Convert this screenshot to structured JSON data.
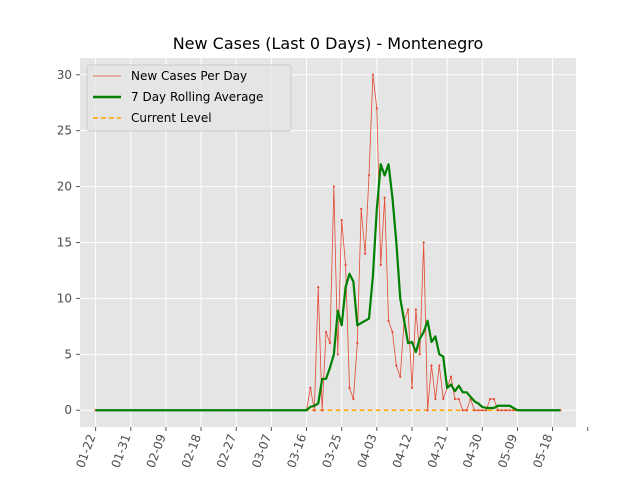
{
  "chart_data": {
    "type": "line",
    "title": "New Cases (Last 0 Days) - Montenegro",
    "xlabel": "",
    "ylabel": "",
    "x_start": "2020-01-22",
    "x_end": "2020-05-20",
    "xlim": [
      "2020-01-18",
      "2020-05-24"
    ],
    "ylim": [
      -1.5,
      31.5
    ],
    "x_tick_dates": [
      "2020-01-22",
      "2020-01-31",
      "2020-02-09",
      "2020-02-18",
      "2020-02-27",
      "2020-03-07",
      "2020-03-16",
      "2020-03-25",
      "2020-04-03",
      "2020-04-12",
      "2020-04-21",
      "2020-04-30",
      "2020-05-09",
      "2020-05-18",
      "2020-05-27"
    ],
    "x_tick_labels": [
      "01-22",
      "01-31",
      "02-09",
      "02-18",
      "02-27",
      "03-07",
      "03-16",
      "03-25",
      "04-03",
      "04-12",
      "04-21",
      "04-30",
      "05-09",
      "05-18",
      ""
    ],
    "y_ticks": [
      0,
      5,
      10,
      15,
      20,
      25,
      30
    ],
    "y_tick_labels": [
      "0",
      "5",
      "10",
      "15",
      "20",
      "25",
      "30"
    ],
    "grid": true,
    "legend_position": "top-left",
    "current_level": 0,
    "series": [
      {
        "name": "New Cases Per Day",
        "color": "#e24a33",
        "values": [
          0,
          0,
          0,
          0,
          0,
          0,
          0,
          0,
          0,
          0,
          0,
          0,
          0,
          0,
          0,
          0,
          0,
          0,
          0,
          0,
          0,
          0,
          0,
          0,
          0,
          0,
          0,
          0,
          0,
          0,
          0,
          0,
          0,
          0,
          0,
          0,
          0,
          0,
          0,
          0,
          0,
          0,
          0,
          0,
          0,
          0,
          0,
          0,
          0,
          0,
          0,
          0,
          0,
          0,
          0,
          2,
          0,
          11,
          0,
          7,
          6,
          20,
          5,
          17,
          13,
          2,
          1,
          6,
          18,
          14,
          21,
          30,
          27,
          13,
          19,
          8,
          7,
          4,
          3,
          8,
          9,
          2,
          9,
          5,
          15,
          0,
          4,
          1,
          4,
          1,
          2,
          3,
          1,
          1,
          0,
          0,
          1,
          0,
          0,
          0,
          0,
          1,
          1,
          0,
          0,
          0,
          0,
          0,
          0,
          0,
          0,
          0,
          0,
          0,
          0,
          0,
          0,
          0,
          0,
          0
        ]
      },
      {
        "name": "7 Day Rolling Average",
        "color": "#008000",
        "values": [
          0,
          0,
          0,
          0,
          0,
          0,
          0,
          0,
          0,
          0,
          0,
          0,
          0,
          0,
          0,
          0,
          0,
          0,
          0,
          0,
          0,
          0,
          0,
          0,
          0,
          0,
          0,
          0,
          0,
          0,
          0,
          0,
          0,
          0,
          0,
          0,
          0,
          0,
          0,
          0,
          0,
          0,
          0,
          0,
          0,
          0,
          0,
          0,
          0,
          0,
          0,
          0,
          0,
          0,
          0,
          0.3,
          0.4,
          0.6,
          2.8,
          2.8,
          3.8,
          5,
          8.9,
          7.6,
          11,
          12.2,
          11.5,
          7.6,
          7.8,
          8,
          8.2,
          12,
          18,
          22,
          21,
          22,
          19,
          15,
          10,
          8,
          6,
          6.1,
          5.2,
          6.4,
          7,
          8,
          6.1,
          6.6,
          5,
          4.8,
          2,
          2.3,
          1.7,
          2.2,
          1.6,
          1.6,
          1.2,
          0.8,
          0.6,
          0.3,
          0.2,
          0.2,
          0.2,
          0.4,
          0.4,
          0.4,
          0.4,
          0.2,
          0,
          0,
          0,
          0,
          0,
          0,
          0,
          0,
          0,
          0,
          0,
          0
        ]
      },
      {
        "name": "Current Level",
        "color": "#ffa500",
        "values": [
          0,
          0
        ]
      }
    ]
  }
}
